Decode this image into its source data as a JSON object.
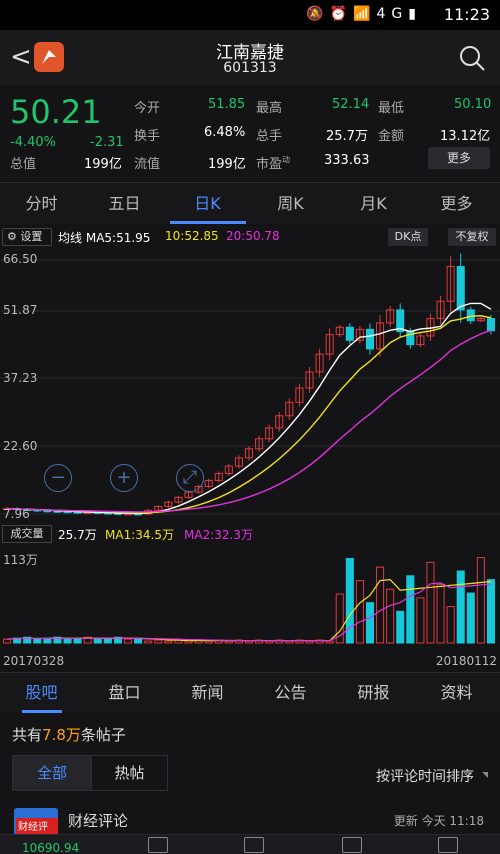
{
  "status": {
    "time": "11:23",
    "icons": "mute-icon alarm-icon wifi-icon 4g-icon signal-icon battery-icon",
    "network": "4G"
  },
  "header": {
    "name": "江南嘉捷",
    "code": "601313"
  },
  "quote": {
    "price": "50.21",
    "pct": "-4.40%",
    "change": "-2.31",
    "total_mv_label": "总值",
    "total_mv": "199亿",
    "open_label": "今开",
    "open": "51.85",
    "high_label": "最高",
    "high": "52.14",
    "low_label": "最低",
    "low": "50.10",
    "turnover_label": "换手",
    "turnover": "6.48%",
    "volume_label": "总手",
    "volume": "25.7万",
    "amount_label": "金额",
    "amount": "13.12亿",
    "float_label": "流值",
    "float_mv": "199亿",
    "pe_label": "市盈",
    "pe_superscript": "动",
    "pe": "333.63",
    "more": "更多"
  },
  "periods": [
    "分时",
    "五日",
    "日K",
    "周K",
    "月K",
    "更多"
  ],
  "ma": {
    "settings": "设置",
    "ma_label": "均线",
    "ma5": "MA5:51.95",
    "ma10": "10:52.85",
    "ma20": "20:50.78",
    "dk": "DK点",
    "fq": "不复权"
  },
  "price_axis": [
    "66.50",
    "51.87",
    "37.23",
    "22.60",
    "7.96"
  ],
  "volume": {
    "label": "成交量",
    "value": "25.7万",
    "ma1": "MA1:34.5万",
    "ma2": "MA2:32.3万",
    "axis_top": "113万"
  },
  "dates": {
    "start": "20170328",
    "end": "20180112"
  },
  "tabs": [
    "股吧",
    "盘口",
    "新闻",
    "公告",
    "研报",
    "资料"
  ],
  "posts": {
    "prefix": "共有",
    "count": "7.8万",
    "suffix": "条帖子"
  },
  "filter": {
    "all": "全部",
    "hot": "热帖",
    "sort": "按评论时间排序"
  },
  "post": {
    "avatar_text": "财经评论",
    "author": "财经评论",
    "time": "更新 今天 11:18"
  },
  "bottom": {
    "partial_value": "10690.94"
  },
  "colors": {
    "up": "#e03a3a",
    "down": "#20c46a",
    "accent": "#4a8bff",
    "ma5": "#ffffff",
    "ma10": "#f2e416",
    "ma20": "#e033e0",
    "vol_up": "#e03a3a",
    "vol_down": "#16c8d8"
  },
  "chart_data": {
    "type": "candlestick",
    "y_axis_ticks": [
      66.5,
      51.87,
      37.23,
      22.6,
      7.96
    ],
    "ylim": [
      7.96,
      66.5
    ],
    "x_start": "20170328",
    "x_end": "20180112",
    "approx_close": [
      9.2,
      9.0,
      8.9,
      8.7,
      8.6,
      8.5,
      8.4,
      8.3,
      8.3,
      8.2,
      8.1,
      8.0,
      8.0,
      7.96,
      8.8,
      9.7,
      10.7,
      11.8,
      13.0,
      14.3,
      15.7,
      17.3,
      19.0,
      20.9,
      23.0,
      25.3,
      27.8,
      30.6,
      33.7,
      37.0,
      40.7,
      44.8,
      49.3,
      51.0,
      48.0,
      50.5,
      46.0,
      52.0,
      55.0,
      50.0,
      47.0,
      49.0,
      53.0,
      57.0,
      65.0,
      55.0,
      52.5,
      53.0,
      50.21
    ],
    "ma5_last": 51.95,
    "ma10_last": 52.85,
    "ma20_last": 50.78
  }
}
